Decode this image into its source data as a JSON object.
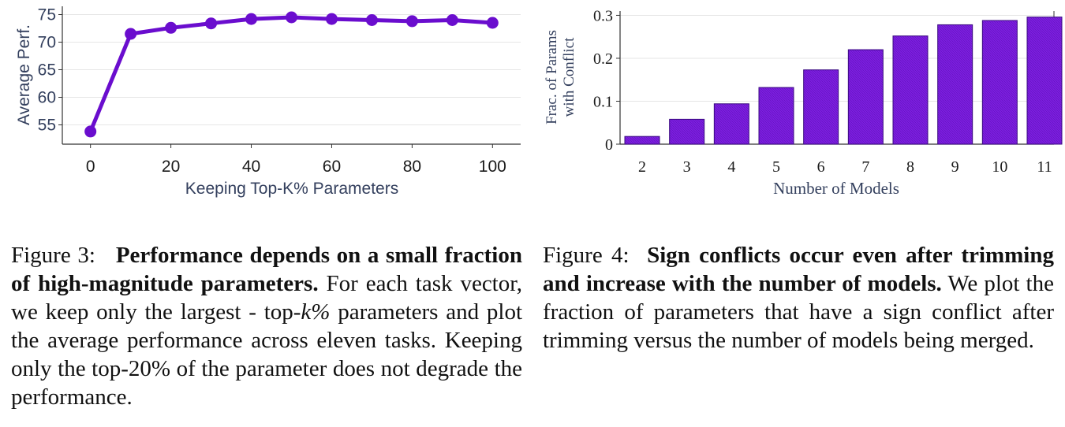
{
  "colors": {
    "line": "#6a0dce",
    "bar": "#7d1ee0",
    "bar_edge": "#3a0a80",
    "axis_text": "#34405e",
    "grid": "#e6e6e6"
  },
  "chart_data": [
    {
      "type": "line",
      "xlabel": "Keeping Top-K% Parameters",
      "ylabel": "Average Perf.",
      "x": [
        0,
        10,
        20,
        30,
        40,
        50,
        60,
        70,
        80,
        90,
        100
      ],
      "values": [
        53.8,
        71.5,
        72.6,
        73.4,
        74.2,
        74.5,
        74.2,
        74.0,
        73.8,
        74.0,
        73.5
      ],
      "xticks": [
        "0",
        "20",
        "40",
        "60",
        "80",
        "100"
      ],
      "yticks": [
        "55",
        "60",
        "65",
        "70",
        "75"
      ],
      "xlim": [
        -7,
        107
      ],
      "ylim": [
        51.5,
        76.5
      ],
      "grid": "horizontal",
      "legend": "none"
    },
    {
      "type": "bar",
      "xlabel": "Number of Models",
      "ylabel_line1": "Frac. of Params",
      "ylabel_line2": "with Conflict",
      "categories": [
        "2",
        "3",
        "4",
        "5",
        "6",
        "7",
        "8",
        "9",
        "10",
        "11"
      ],
      "values": [
        0.018,
        0.058,
        0.094,
        0.132,
        0.173,
        0.22,
        0.252,
        0.278,
        0.288,
        0.296
      ],
      "yticks": [
        "0",
        "0.1",
        "0.2",
        "0.3"
      ],
      "ylim": [
        0,
        0.31
      ],
      "grid": "horizontal",
      "legend": "none"
    }
  ],
  "captions": {
    "left": {
      "prefix": "Figure 3:",
      "bold": "Performance depends on a small fraction of high-magnitude parameters.",
      "body_a": "For each task vector, we keep only the largest - top-",
      "body_k": "k%",
      "body_b": "parameters and plot the average performance across eleven tasks. Keeping only the top-20% of the parameter does not degrade the performance."
    },
    "right": {
      "prefix": "Figure 4:",
      "bold": "Sign conflicts occur even after trimming and increase with the number of models.",
      "body": "We plot the fraction of parameters that have a sign conflict after trimming versus the number of models being merged."
    }
  }
}
